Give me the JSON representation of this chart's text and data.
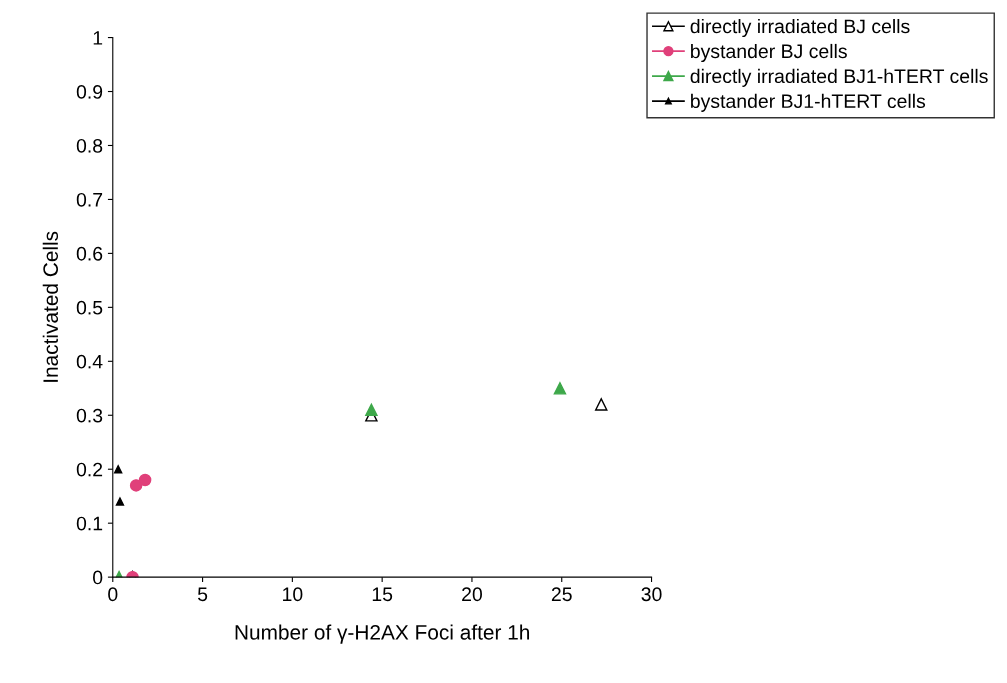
{
  "chart_data": {
    "type": "scatter",
    "xlabel": "Number of γ-H2AX Foci after 1h",
    "ylabel": "Inactivated Cells",
    "xlim": [
      0,
      30
    ],
    "xticks": [
      0,
      5,
      10,
      15,
      20,
      25,
      30
    ],
    "ylim": [
      0,
      1
    ],
    "yticks": [
      0,
      0.1,
      0.2,
      0.3,
      0.4,
      0.5,
      0.6,
      0.7,
      0.8,
      0.9,
      1
    ],
    "grid": false,
    "legend": "top right",
    "series": [
      {
        "name": "directly irradiated BJ cells",
        "color": "#000000",
        "marker": "triangle",
        "x": [
          1.1,
          14.4,
          27.2
        ],
        "values": [
          0,
          0.3,
          0.32
        ]
      },
      {
        "name": "bystander BJ cells",
        "color": "#e0407a",
        "marker": "circle",
        "x": [
          1.1,
          1.3,
          1.8
        ],
        "values": [
          0,
          0.17,
          0.18
        ]
      },
      {
        "name": "directly irradiated BJ1-hTERT cells",
        "color": "#3ea84a",
        "marker": "triangle",
        "x": [
          0.35,
          14.4,
          24.9
        ],
        "values": [
          0,
          0.31,
          0.35
        ]
      },
      {
        "name": "bystander BJ1-hTERT cells",
        "color": "#000000",
        "marker": "triangle",
        "x": [
          0.3,
          0.4
        ],
        "values": [
          0.2,
          0.14
        ]
      }
    ]
  }
}
